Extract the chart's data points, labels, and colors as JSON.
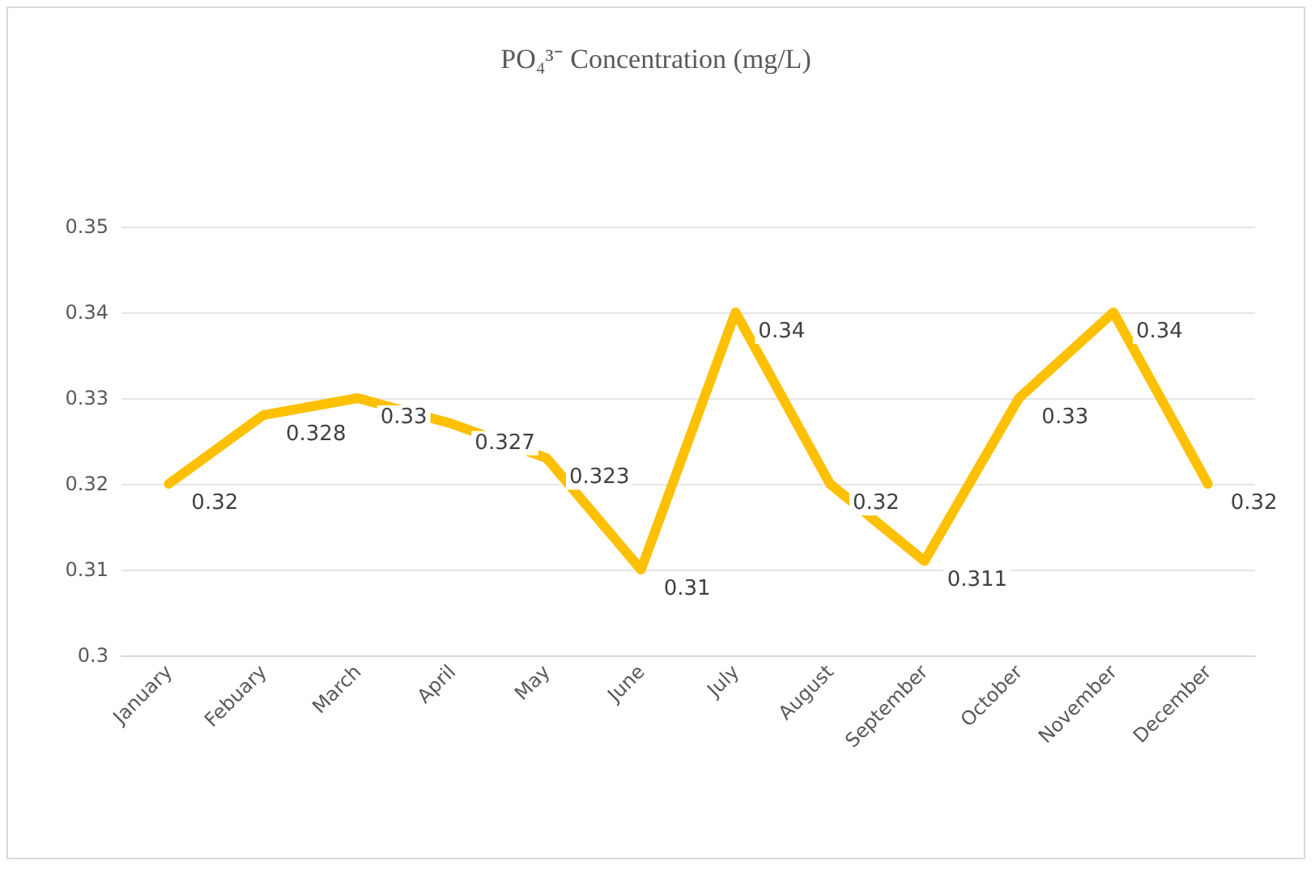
{
  "chart_data": {
    "type": "line",
    "title": "PO₄³⁻ Concentration (mg/L)",
    "categories": [
      "January",
      "Febuary",
      "March",
      "April",
      "May",
      "June",
      "July",
      "August",
      "September",
      "October",
      "November",
      "December"
    ],
    "series": [
      {
        "color": "#ffc000",
        "values": [
          0.32,
          0.328,
          0.33,
          0.327,
          0.323,
          0.31,
          0.34,
          0.32,
          0.311,
          0.33,
          0.34,
          0.32
        ]
      }
    ],
    "ylim": [
      0.3,
      0.35
    ],
    "yticks": [
      0.3,
      0.31,
      0.32,
      0.33,
      0.34,
      0.35
    ],
    "grid": "y",
    "data_labels": true,
    "marker": "none",
    "line_style": "solid"
  }
}
